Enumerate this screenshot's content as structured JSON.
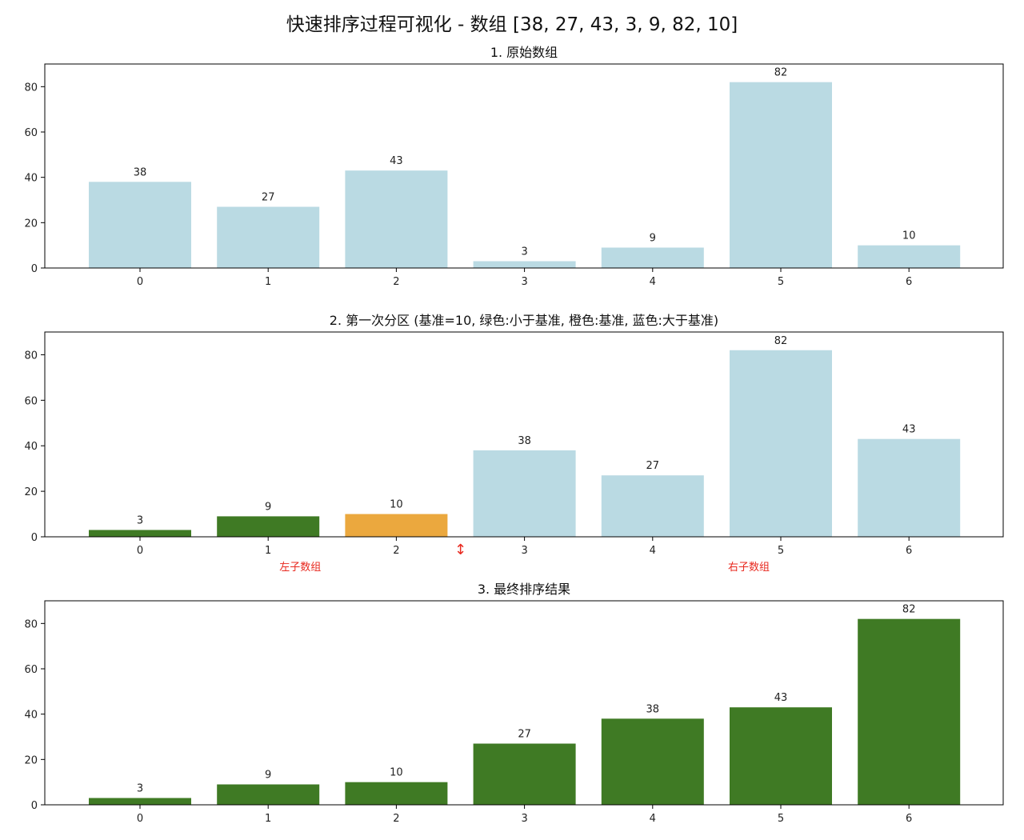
{
  "title": "快速排序过程可视化 - 数组 [38, 27, 43, 3, 9, 82, 10]",
  "colors": {
    "default": "#badad f",
    "less": "#3f7a24",
    "pivot": "#eba83e",
    "greater": "#badae3",
    "annotation": "#e8291f",
    "axis": "#000000"
  },
  "chart_data": [
    {
      "type": "bar",
      "title": "1. 原始数组",
      "categories": [
        "0",
        "1",
        "2",
        "3",
        "4",
        "5",
        "6"
      ],
      "values": [
        38,
        27,
        43,
        3,
        9,
        82,
        10
      ],
      "bar_colors": [
        "greater",
        "greater",
        "greater",
        "greater",
        "greater",
        "greater",
        "greater"
      ],
      "ylim": [
        0,
        90
      ],
      "yticks": [
        0,
        20,
        40,
        60,
        80
      ],
      "xlabel": "",
      "ylabel": "",
      "data_labels": true,
      "annotations": []
    },
    {
      "type": "bar",
      "title": "2. 第一次分区 (基准=10, 绿色:小于基准, 橙色:基准, 蓝色:大于基准)",
      "categories": [
        "0",
        "1",
        "2",
        "3",
        "4",
        "5",
        "6"
      ],
      "values": [
        3,
        9,
        10,
        38,
        27,
        82,
        43
      ],
      "bar_colors": [
        "less",
        "less",
        "pivot",
        "greater",
        "greater",
        "greater",
        "greater"
      ],
      "ylim": [
        0,
        90
      ],
      "yticks": [
        0,
        20,
        40,
        60,
        80
      ],
      "xlabel": "",
      "ylabel": "",
      "data_labels": true,
      "annotations": [
        {
          "text": "左子数组",
          "x": 1.25
        },
        {
          "text": "右子数组",
          "x": 4.75
        }
      ],
      "split_marker": {
        "symbol": "↕",
        "x": 2.5
      }
    },
    {
      "type": "bar",
      "title": "3. 最终排序结果",
      "categories": [
        "0",
        "1",
        "2",
        "3",
        "4",
        "5",
        "6"
      ],
      "values": [
        3,
        9,
        10,
        27,
        38,
        43,
        82
      ],
      "bar_colors": [
        "less",
        "less",
        "less",
        "less",
        "less",
        "less",
        "less"
      ],
      "ylim": [
        0,
        90
      ],
      "yticks": [
        0,
        20,
        40,
        60,
        80
      ],
      "xlabel": "",
      "ylabel": "",
      "data_labels": true,
      "annotations": []
    }
  ]
}
